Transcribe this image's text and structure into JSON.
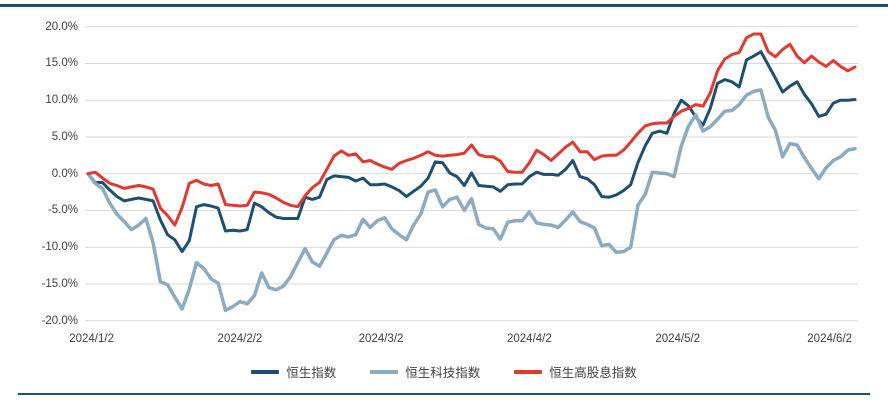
{
  "page": {
    "accent_border_color": "#1f4e79",
    "background_color": "#ffffff",
    "gridline_color": "#d9d9d9",
    "axis_text_color": "#3f3f3f"
  },
  "chart_data": {
    "type": "line",
    "title": "",
    "grid": true,
    "legend_position": "bottom-center",
    "ylim": [
      -20,
      20
    ],
    "y_tick_values": [
      20,
      15,
      10,
      5,
      0,
      -5,
      -10,
      -15,
      -20
    ],
    "y_tick_labels": [
      "20.0%",
      "15.0%",
      "10.0%",
      "5.0%",
      "0.0%",
      "-5.0%",
      "-10.0%",
      "-15.0%",
      "-20.0%"
    ],
    "x_tick_labels": [
      "2024/1/2",
      "2024/2/2",
      "2024/3/2",
      "2024/4/2",
      "2024/5/2",
      "2024/6/2"
    ],
    "x_tick_day_indices": [
      0.5,
      21,
      40.5,
      61,
      81.5,
      102.5
    ],
    "x_unit": "trading-day index, daily % change vs 2024/1/2",
    "num_points": 107,
    "series": [
      {
        "name": "恒生指数",
        "key": "hang-seng-index",
        "color": "#1d4f71",
        "line_width": 3,
        "values": [
          0,
          -1.2,
          -1.2,
          -2.2,
          -3.1,
          -3.7,
          -3.5,
          -3.3,
          -3.5,
          -3.7,
          -6.3,
          -8.3,
          -9.0,
          -10.6,
          -9.1,
          -4.5,
          -4.2,
          -4.4,
          -4.7,
          -7.8,
          -7.7,
          -7.8,
          -7.6,
          -4.0,
          -4.5,
          -5.3,
          -5.9,
          -6.1,
          -6.1,
          -6.1,
          -3.2,
          -3.5,
          -3.2,
          -0.8,
          -0.3,
          -0.4,
          -0.5,
          -1.0,
          -0.6,
          -1.5,
          -1.5,
          -1.4,
          -1.8,
          -2.3,
          -3.1,
          -2.4,
          -1.7,
          -0.6,
          1.6,
          1.5,
          0.1,
          -0.4,
          -1.6,
          0.1,
          -1.6,
          -1.7,
          -1.8,
          -2.4,
          -1.5,
          -1.4,
          -1.4,
          -0.4,
          0.2,
          -0.1,
          -0.1,
          -0.2,
          0.6,
          1.8,
          -0.4,
          -0.7,
          -1.5,
          -3.1,
          -3.2,
          -2.9,
          -2.3,
          -1.5,
          1.5,
          3.8,
          5.5,
          5.8,
          5.5,
          8.2,
          10.0,
          9.2,
          7.7,
          6.6,
          8.9,
          12.3,
          12.8,
          12.5,
          11.8,
          15.5,
          16.0,
          16.6,
          14.8,
          13.0,
          11.1,
          11.9,
          12.5,
          10.8,
          9.5,
          7.8,
          8.1,
          9.6,
          10.0,
          10.0,
          10.1
        ]
      },
      {
        "name": "恒生科技指数",
        "key": "hang-seng-tech-index",
        "color": "#8aabc1",
        "line_width": 3.5,
        "values": [
          0,
          -1.3,
          -2.0,
          -4.0,
          -5.5,
          -6.5,
          -7.6,
          -7.0,
          -6.1,
          -9.4,
          -14.7,
          -15.1,
          -16.8,
          -18.4,
          -15.7,
          -12.1,
          -12.9,
          -14.3,
          -14.9,
          -18.6,
          -18.1,
          -17.4,
          -17.7,
          -16.6,
          -13.5,
          -15.5,
          -15.8,
          -15.3,
          -14.0,
          -12.1,
          -10.2,
          -12.0,
          -12.6,
          -10.8,
          -9.0,
          -8.4,
          -8.6,
          -8.3,
          -6.2,
          -7.3,
          -6.4,
          -6.0,
          -7.5,
          -8.3,
          -9.0,
          -7.0,
          -5.5,
          -2.5,
          -2.2,
          -4.5,
          -3.5,
          -3.2,
          -5.0,
          -3.4,
          -6.9,
          -7.4,
          -7.5,
          -8.9,
          -6.6,
          -6.4,
          -6.4,
          -5.2,
          -6.7,
          -6.9,
          -7.0,
          -7.3,
          -6.3,
          -5.2,
          -6.5,
          -6.9,
          -7.4,
          -9.8,
          -9.6,
          -10.7,
          -10.6,
          -10.0,
          -4.3,
          -2.8,
          0.2,
          0.1,
          0.0,
          -0.4,
          3.8,
          6.5,
          8.0,
          5.8,
          6.4,
          7.4,
          8.5,
          8.6,
          9.4,
          10.7,
          11.2,
          11.4,
          7.7,
          5.9,
          2.3,
          4.1,
          3.9,
          2.2,
          0.7,
          -0.7,
          0.8,
          1.8,
          2.3,
          3.2,
          3.4
        ]
      },
      {
        "name": "恒生高股息指数",
        "key": "hang-seng-high-dividend-index",
        "color": "#e03a30",
        "line_width": 3,
        "values": [
          0,
          0.2,
          -0.6,
          -1.3,
          -1.6,
          -2.0,
          -1.8,
          -1.6,
          -1.8,
          -2.1,
          -4.7,
          -5.7,
          -7.0,
          -4.6,
          -1.3,
          -0.9,
          -1.4,
          -1.6,
          -1.4,
          -4.2,
          -4.3,
          -4.4,
          -4.3,
          -2.5,
          -2.6,
          -2.8,
          -3.3,
          -3.9,
          -4.3,
          -4.5,
          -3.0,
          -1.9,
          -1.2,
          0.6,
          2.4,
          3.1,
          2.5,
          2.7,
          1.6,
          1.8,
          1.3,
          0.9,
          0.6,
          1.4,
          1.8,
          2.1,
          2.5,
          3.0,
          2.5,
          2.4,
          2.5,
          2.6,
          2.8,
          3.9,
          2.6,
          2.3,
          2.3,
          1.7,
          0.3,
          0.2,
          0.2,
          1.5,
          3.2,
          2.6,
          1.8,
          2.7,
          3.6,
          4.3,
          3.0,
          3.0,
          1.9,
          2.4,
          2.5,
          2.5,
          3.2,
          4.3,
          5.5,
          6.5,
          6.8,
          6.9,
          6.9,
          7.8,
          8.5,
          8.9,
          9.4,
          9.2,
          11.0,
          14.0,
          15.6,
          16.2,
          16.5,
          18.5,
          19.0,
          19.0,
          16.6,
          15.9,
          16.9,
          17.6,
          16.0,
          15.1,
          16.0,
          15.2,
          14.6,
          15.4,
          14.6,
          14.0,
          14.5
        ]
      }
    ]
  }
}
